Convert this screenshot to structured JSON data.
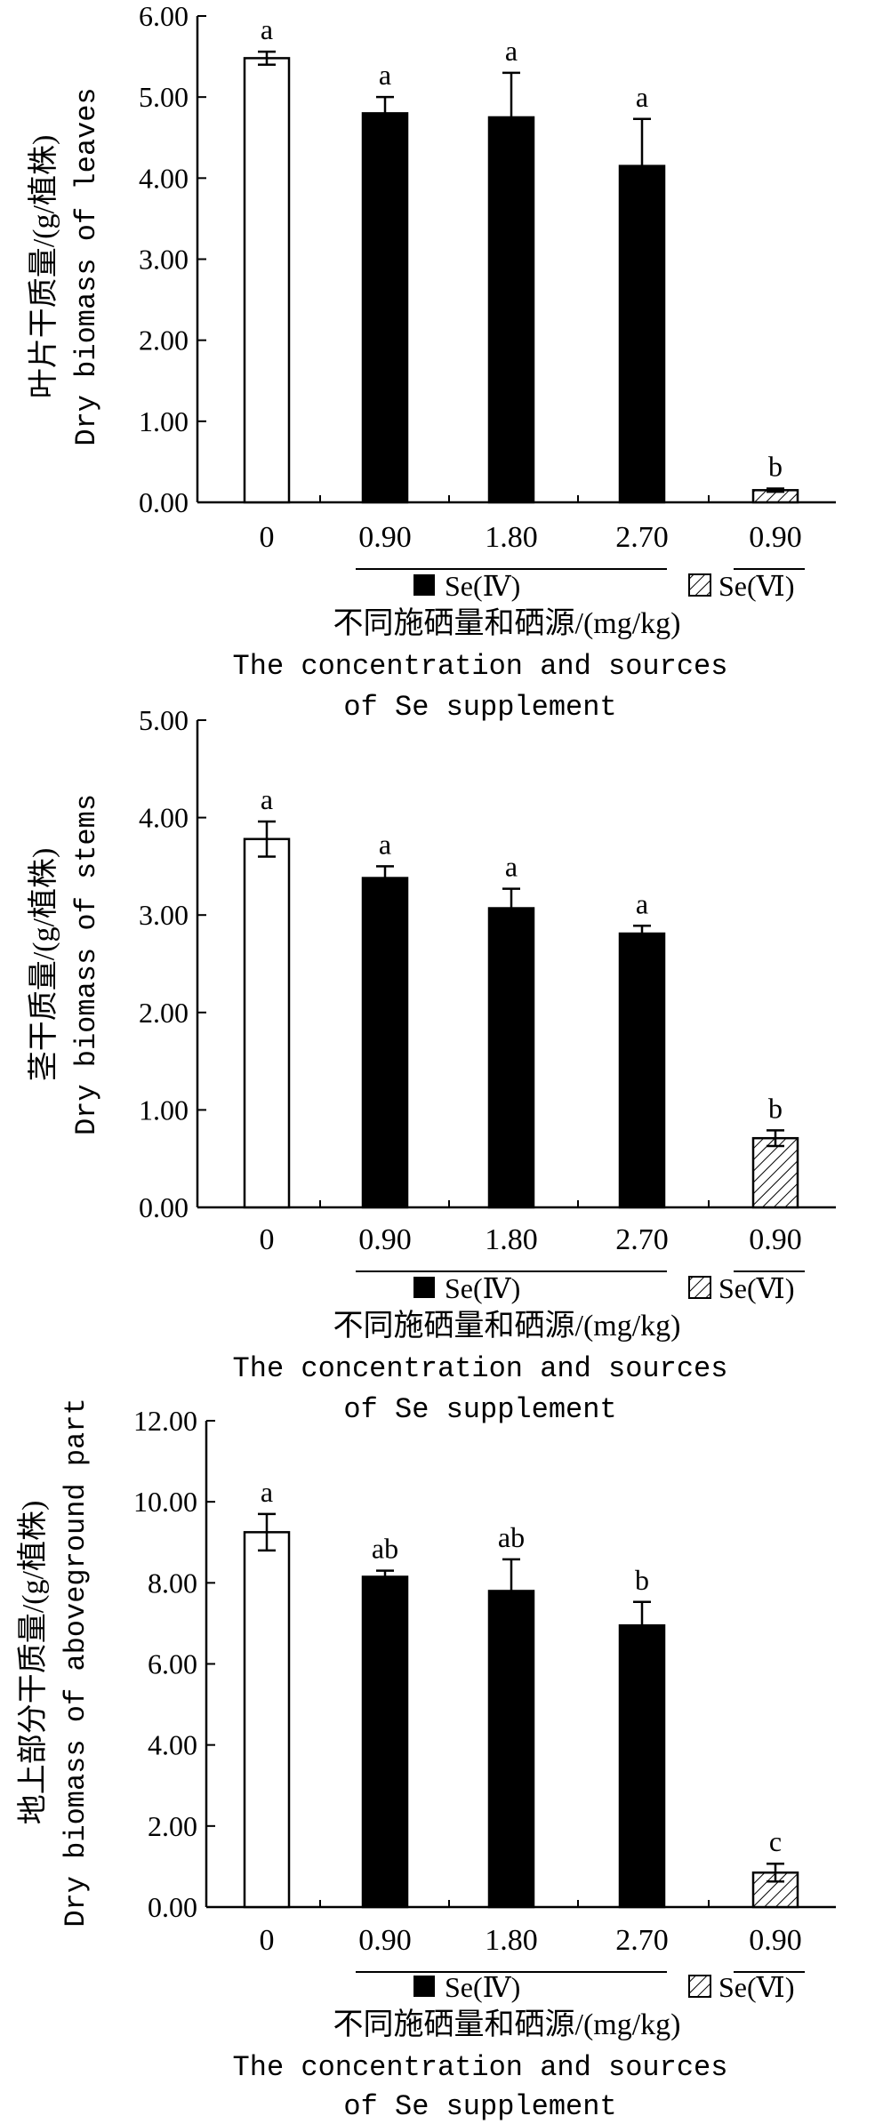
{
  "chart_data": [
    {
      "type": "bar",
      "ylabel_cn": "叶片干质量/(g/植株)",
      "ylabel_en": "Dry biomass of leaves",
      "ylim": [
        0,
        6
      ],
      "yticks": [
        "0.00",
        "1.00",
        "2.00",
        "3.00",
        "4.00",
        "5.00",
        "6.00"
      ],
      "categories": [
        "0",
        "0.90",
        "1.80",
        "2.70",
        "0.90"
      ],
      "values": [
        5.48,
        4.8,
        4.75,
        4.15,
        0.15
      ],
      "errors": [
        0.08,
        0.2,
        0.55,
        0.58,
        0.02
      ],
      "letters": [
        "a",
        "a",
        "a",
        "a",
        "b"
      ],
      "fills": [
        "white",
        "black",
        "black",
        "black",
        "hatch"
      ],
      "legend": {
        "se4": "Se(Ⅳ)",
        "se6": "Se(Ⅵ)"
      },
      "xlabel_cn": "不同施硒量和硒源/(mg/kg)",
      "xlabel_en_1": "The concentration and sources",
      "xlabel_en_2": "of Se supplement"
    },
    {
      "type": "bar",
      "ylabel_cn": "茎干质量/(g/植株)",
      "ylabel_en": "Dry biomass of stems",
      "ylim": [
        0,
        5
      ],
      "yticks": [
        "0.00",
        "1.00",
        "2.00",
        "3.00",
        "4.00",
        "5.00"
      ],
      "categories": [
        "0",
        "0.90",
        "1.80",
        "2.70",
        "0.90"
      ],
      "values": [
        3.78,
        3.38,
        3.07,
        2.81,
        0.71
      ],
      "errors": [
        0.18,
        0.12,
        0.2,
        0.08,
        0.08
      ],
      "letters": [
        "a",
        "a",
        "a",
        "a",
        "b"
      ],
      "fills": [
        "white",
        "black",
        "black",
        "black",
        "hatch"
      ],
      "legend": {
        "se4": "Se(Ⅳ)",
        "se6": "Se(Ⅵ)"
      },
      "xlabel_cn": "不同施硒量和硒源/(mg/kg)",
      "xlabel_en_1": "The concentration and sources",
      "xlabel_en_2": "of Se supplement"
    },
    {
      "type": "bar",
      "ylabel_cn": "地上部分干质量/(g/植株)",
      "ylabel_en": "Dry biomass of aboveground part",
      "ylim": [
        0,
        12
      ],
      "yticks": [
        "0.00",
        "2.00",
        "4.00",
        "6.00",
        "8.00",
        "10.00",
        "12.00"
      ],
      "categories": [
        "0",
        "0.90",
        "1.80",
        "2.70",
        "0.90"
      ],
      "values": [
        9.25,
        8.15,
        7.8,
        6.95,
        0.85
      ],
      "errors": [
        0.45,
        0.15,
        0.78,
        0.58,
        0.22
      ],
      "letters": [
        "a",
        "ab",
        "ab",
        "b",
        "c"
      ],
      "fills": [
        "white",
        "black",
        "black",
        "black",
        "hatch"
      ],
      "legend": {
        "se4": "Se(Ⅳ)",
        "se6": "Se(Ⅵ)"
      },
      "xlabel_cn": "不同施硒量和硒源/(mg/kg)",
      "xlabel_en_1": "The concentration and sources",
      "xlabel_en_2": "of Se supplement"
    }
  ]
}
